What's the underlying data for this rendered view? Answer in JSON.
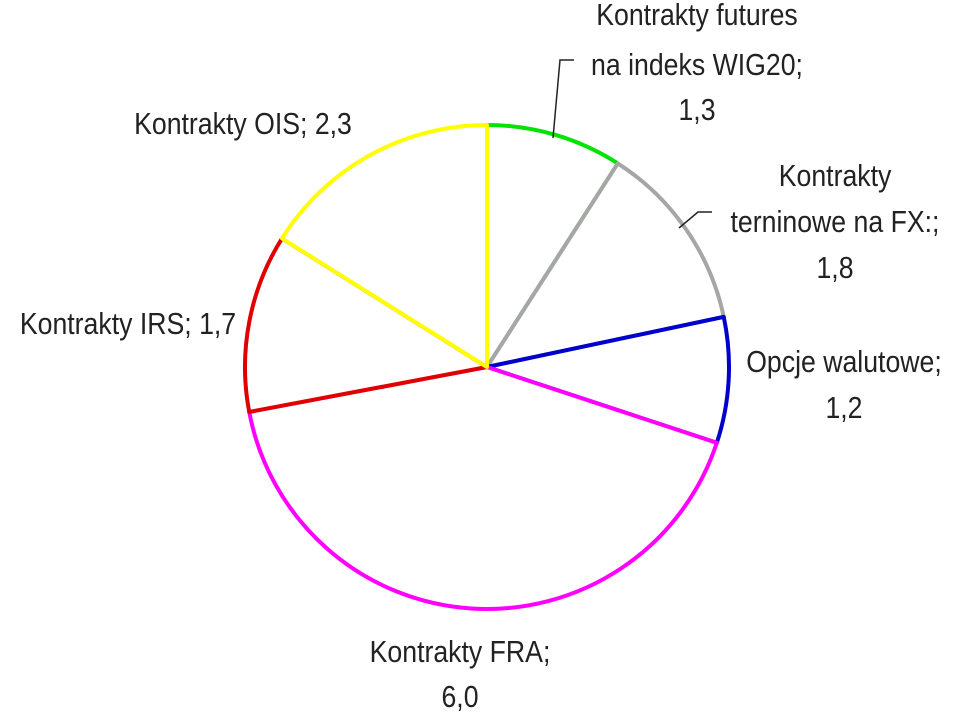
{
  "chart_data": {
    "type": "pie",
    "title": "",
    "slices": [
      {
        "label": "Kontrakty futures na indeks WIG20; 1,3",
        "value": 1.3,
        "color": "#00e400"
      },
      {
        "label": "Kontrakty terninowe na FX:; 1,8",
        "value": 1.8,
        "color": "#a6a6a6"
      },
      {
        "label": "Opcje walutowe; 1,2",
        "value": 1.2,
        "color": "#0000cc"
      },
      {
        "label": "Kontrakty FRA; 6,0",
        "value": 6.0,
        "color": "#ff00ff"
      },
      {
        "label": "Kontrakty IRS; 1,7",
        "value": 1.7,
        "color": "#e00000"
      },
      {
        "label": "Kontrakty OIS; 2,3",
        "value": 2.3,
        "color": "#ffff00"
      }
    ],
    "labels": {
      "futures": [
        "Kontrakty futures",
        "na indeks WIG20;",
        "1,3"
      ],
      "fx": [
        "Kontrakty",
        "terninowe na FX:;",
        "1,8"
      ],
      "opcje": [
        "Opcje walutowe;",
        "1,2"
      ],
      "fra": [
        "Kontrakty FRA;",
        "6,0"
      ],
      "irs": [
        "Kontrakty IRS; 1,7"
      ],
      "ois": [
        "Kontrakty OIS; 2,3"
      ]
    }
  }
}
